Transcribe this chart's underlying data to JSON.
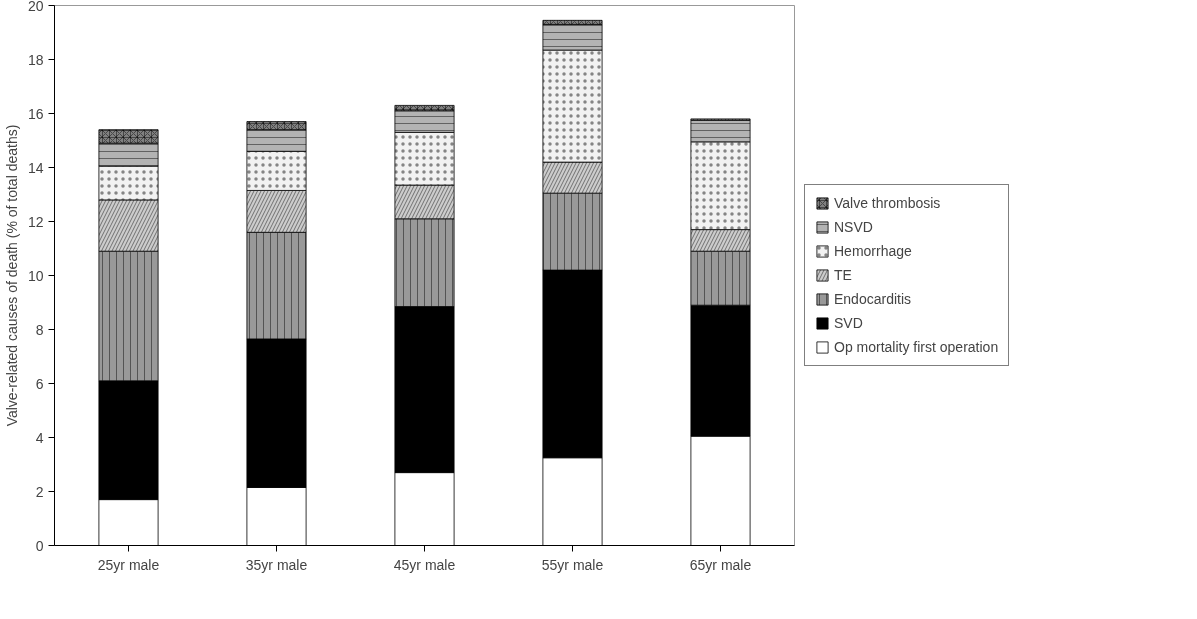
{
  "chart_data": {
    "type": "bar",
    "stacked": true,
    "ylabel": "Valve-related causes of death (% of total deaths)",
    "categories": [
      "25yr male",
      "35yr male",
      "45yr male",
      "55yr male",
      "65yr male"
    ],
    "series": [
      {
        "name": "Op mortality first operation",
        "color": "#ffffff",
        "values": [
          1.7,
          2.15,
          2.7,
          3.25,
          4.05
        ]
      },
      {
        "name": "SVD",
        "color": "#000000",
        "values": [
          4.4,
          5.5,
          6.15,
          6.95,
          4.85
        ]
      },
      {
        "name": "Endocarditis",
        "color": "#999999",
        "values": [
          4.8,
          3.95,
          3.25,
          2.85,
          2.0
        ]
      },
      {
        "name": "TE",
        "color": "#cccccc",
        "values": [
          1.9,
          1.55,
          1.25,
          1.15,
          0.8
        ]
      },
      {
        "name": "Hemorrhage",
        "color": "#f2f2f2",
        "values": [
          1.25,
          1.45,
          1.95,
          4.15,
          3.25
        ]
      },
      {
        "name": "NSVD",
        "color": "#b3b3b3",
        "values": [
          0.85,
          0.8,
          0.8,
          0.95,
          0.8
        ]
      },
      {
        "name": "Valve thrombosis",
        "color": "#808080",
        "values": [
          0.5,
          0.3,
          0.2,
          0.15,
          0.05
        ]
      }
    ],
    "ylim": [
      0,
      20
    ],
    "yticks": [
      0,
      2,
      4,
      6,
      8,
      10,
      12,
      14,
      16,
      18,
      20
    ],
    "grid": false,
    "legend": "right"
  }
}
